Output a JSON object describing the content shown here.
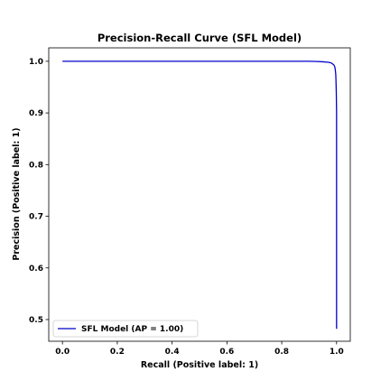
{
  "chart_data": {
    "type": "line",
    "title": "Precision-Recall Curve (SFL Model)",
    "xlabel": "Recall (Positive label: 1)",
    "ylabel": "Precision (Positive label: 1)",
    "xlim": [
      -0.05,
      1.05
    ],
    "ylim": [
      0.458,
      1.026
    ],
    "xticks": [
      0.0,
      0.2,
      0.4,
      0.6,
      0.8,
      1.0
    ],
    "xtick_labels": [
      "0.0",
      "0.2",
      "0.4",
      "0.6",
      "0.8",
      "1.0"
    ],
    "yticks": [
      0.5,
      0.6,
      0.7,
      0.8,
      0.9,
      1.0
    ],
    "ytick_labels": [
      "0.5",
      "0.6",
      "0.7",
      "0.8",
      "0.9",
      "1.0"
    ],
    "grid": false,
    "legend_position": "lower-left",
    "series": [
      {
        "name": "SFL Model (AP = 1.00)",
        "color": "#0000cc",
        "x": [
          0.0,
          0.2,
          0.4,
          0.6,
          0.8,
          0.9,
          0.93,
          0.95,
          0.96,
          0.97,
          0.98,
          0.985,
          0.99,
          0.993,
          0.995,
          0.997,
          0.998,
          0.999,
          1.0,
          1.0,
          1.0
        ],
        "y": [
          1.0,
          1.0,
          1.0,
          1.0,
          1.0,
          1.0,
          0.9995,
          0.999,
          0.9985,
          0.998,
          0.997,
          0.995,
          0.993,
          0.99,
          0.985,
          0.975,
          0.96,
          0.94,
          0.9,
          0.7,
          0.482
        ]
      }
    ]
  }
}
